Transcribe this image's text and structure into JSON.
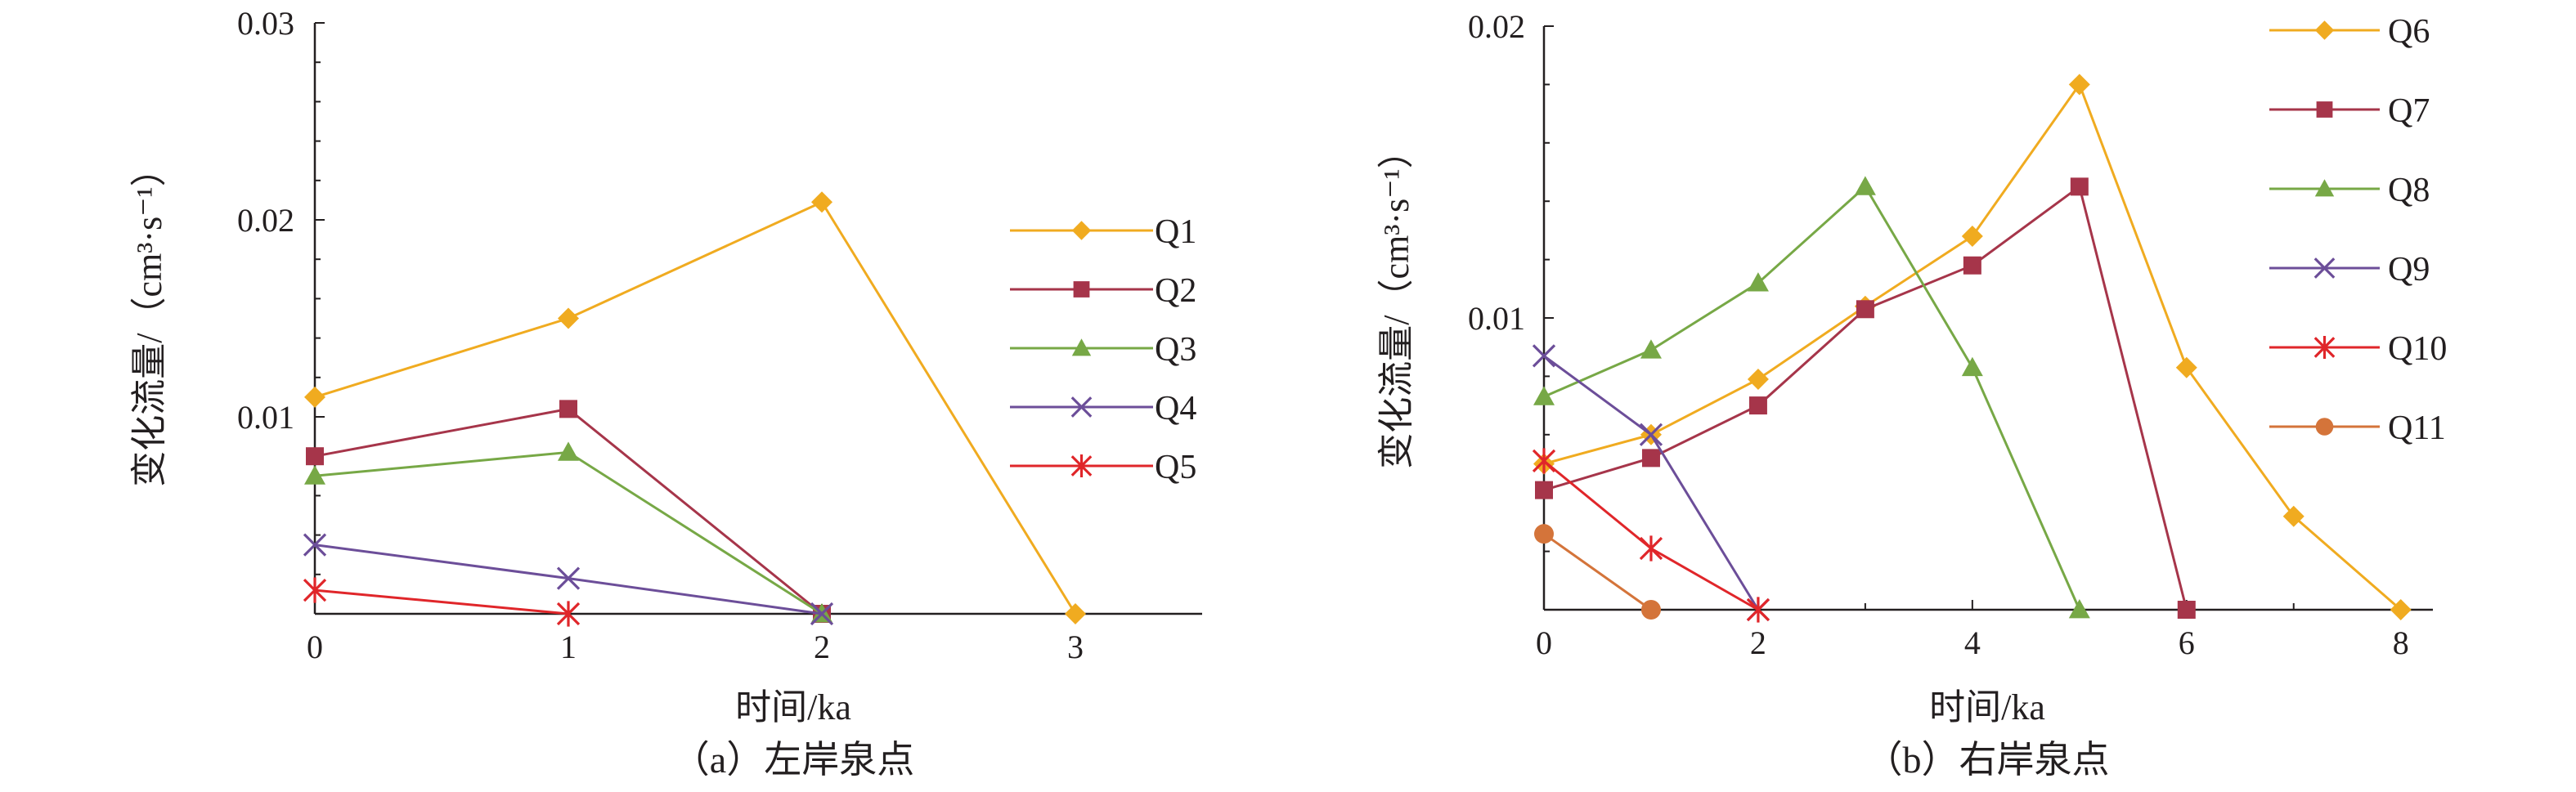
{
  "chart_data": [
    {
      "type": "line",
      "caption": "（a）左岸泉点",
      "xlabel": "时间/ka",
      "ylabel": "变化流量/（cm³·s⁻¹）",
      "xlim": [
        0,
        3.5
      ],
      "ylim": [
        0,
        0.03
      ],
      "xticks": [
        0,
        1,
        2,
        3
      ],
      "yticks": [
        0.01,
        0.02,
        0.03
      ],
      "ytick_labels": [
        "0.01",
        "0.02",
        "0.03"
      ],
      "legend_position": "right",
      "series": [
        {
          "name": "Q1",
          "color": "#f0ab20",
          "marker": "diamond",
          "x": [
            0,
            1,
            2,
            3
          ],
          "y": [
            0.011,
            0.015,
            0.0209,
            0.0
          ]
        },
        {
          "name": "Q2",
          "color": "#a6354a",
          "marker": "square",
          "x": [
            0,
            1,
            2
          ],
          "y": [
            0.008,
            0.0104,
            0.0
          ]
        },
        {
          "name": "Q3",
          "color": "#77a846",
          "marker": "triangle",
          "x": [
            0,
            1,
            2
          ],
          "y": [
            0.007,
            0.0082,
            0.0
          ]
        },
        {
          "name": "Q4",
          "color": "#6c4e99",
          "marker": "x",
          "x": [
            0,
            1,
            2
          ],
          "y": [
            0.0035,
            0.0018,
            0.0
          ]
        },
        {
          "name": "Q5",
          "color": "#e0262a",
          "marker": "asterisk",
          "x": [
            0,
            1
          ],
          "y": [
            0.0012,
            0.0
          ]
        }
      ]
    },
    {
      "type": "line",
      "caption": "（b）右岸泉点",
      "xlabel": "时间/ka",
      "ylabel": "变化流量/（cm³·s⁻¹）",
      "xlim": [
        0,
        8.3
      ],
      "ylim": [
        0,
        0.02
      ],
      "xticks": [
        0,
        2,
        4,
        6,
        8
      ],
      "yticks": [
        0.01,
        0.02
      ],
      "ytick_labels": [
        "0.01",
        "0.02"
      ],
      "legend_position": "top-right",
      "series": [
        {
          "name": "Q6",
          "color": "#f0ab20",
          "marker": "diamond",
          "x": [
            0,
            1,
            2,
            3,
            4,
            5,
            6,
            7,
            8
          ],
          "y": [
            0.005,
            0.006,
            0.0079,
            0.0104,
            0.0128,
            0.018,
            0.0083,
            0.0032,
            0.0
          ]
        },
        {
          "name": "Q7",
          "color": "#a6354a",
          "marker": "square",
          "x": [
            0,
            1,
            2,
            3,
            4,
            5,
            6
          ],
          "y": [
            0.0041,
            0.0052,
            0.007,
            0.0103,
            0.0118,
            0.0145,
            0.0
          ]
        },
        {
          "name": "Q8",
          "color": "#77a846",
          "marker": "triangle",
          "x": [
            0,
            1,
            2,
            3,
            4,
            5
          ],
          "y": [
            0.0073,
            0.0089,
            0.0112,
            0.0145,
            0.0083,
            0.0
          ]
        },
        {
          "name": "Q9",
          "color": "#6c4e99",
          "marker": "x",
          "x": [
            0,
            1,
            2
          ],
          "y": [
            0.0087,
            0.006,
            0.0
          ]
        },
        {
          "name": "Q10",
          "color": "#e0262a",
          "marker": "asterisk",
          "x": [
            0,
            1,
            2
          ],
          "y": [
            0.0051,
            0.0021,
            0.0
          ]
        },
        {
          "name": "Q11",
          "color": "#d4743a",
          "marker": "circle",
          "x": [
            0,
            1
          ],
          "y": [
            0.0026,
            0.0
          ]
        }
      ]
    }
  ]
}
